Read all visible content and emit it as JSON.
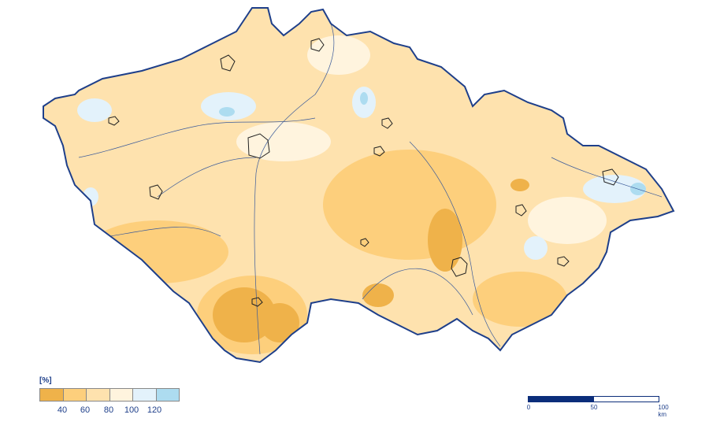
{
  "legend": {
    "unit": "[%]",
    "colors": [
      "#EFB24A",
      "#FDCF7C",
      "#FEE2AE",
      "#FFF4DE",
      "#E3F2FB",
      "#ADDCF0"
    ],
    "ticks": [
      "40",
      "60",
      "80",
      "100",
      "120"
    ]
  },
  "scale_bar": {
    "labels": [
      "0",
      "50",
      "100 km"
    ],
    "colors": [
      "#0B2D7A",
      "#FFFFFF"
    ]
  },
  "map": {
    "border_color": "#1E3F8A",
    "river_color": "#3A5A9A"
  }
}
